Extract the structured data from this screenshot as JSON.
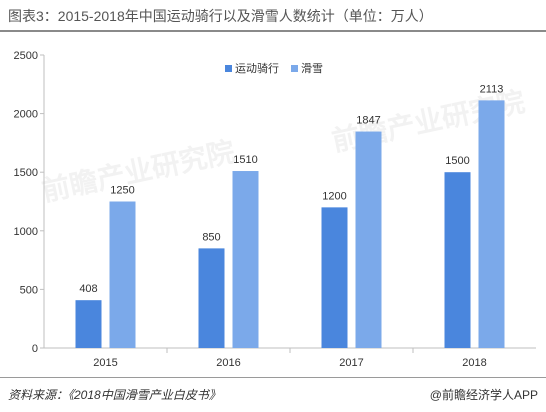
{
  "page": {
    "title": "图表3：2015-2018年中国运动骑行以及滑雪人数统计（单位：万人）",
    "source": "资料来源：《2018中国滑雪产业白皮书》",
    "brand": "@前瞻经济学人APP",
    "watermark": "前瞻产业研究院"
  },
  "chart_data": {
    "type": "bar",
    "categories": [
      "2015",
      "2016",
      "2017",
      "2018"
    ],
    "series": [
      {
        "name": "运动骑行",
        "values": [
          408,
          850,
          1200,
          1500
        ],
        "color": "#4a86dd"
      },
      {
        "name": "滑雪",
        "values": [
          1250,
          1510,
          1847,
          2113
        ],
        "color": "#7ba9ea"
      }
    ],
    "ylim": [
      0,
      2500
    ],
    "yticks": [
      0,
      500,
      1000,
      1500,
      2000,
      2500
    ],
    "grid": false,
    "legend": "top-center",
    "data_labels": true
  }
}
